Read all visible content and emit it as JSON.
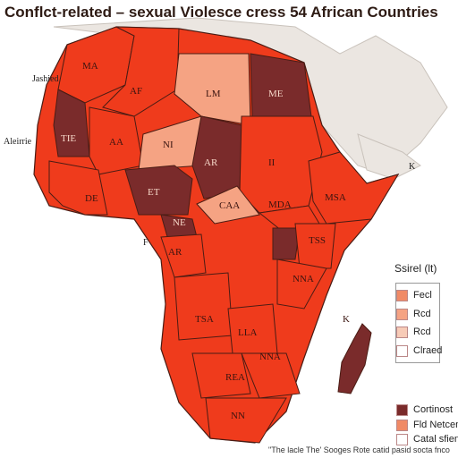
{
  "title": "Conflct-related – sexual Violesce cress 54 African Countries",
  "colors": {
    "land_light": "#ebe6e1",
    "ocean": "#ffffff",
    "dark": "#7a2b2b",
    "red": "#ef3b1c",
    "salmon": "#f08a66",
    "pale": "#f5b79c",
    "border": "#4a1c14"
  },
  "side_labels": {
    "top_left": "Jashied",
    "left": "Aleirrie",
    "right_k": "K",
    "right_k2": "K",
    "west_f": "F"
  },
  "countries": [
    {
      "label": "MA",
      "shade": "red"
    },
    {
      "label": "AF",
      "shade": "red"
    },
    {
      "label": "LM",
      "shade": "salmon"
    },
    {
      "label": "ME",
      "shade": "dark"
    },
    {
      "label": "TIE",
      "shade": "dark"
    },
    {
      "label": "AA",
      "shade": "red"
    },
    {
      "label": "NI",
      "shade": "salmon"
    },
    {
      "label": "AR",
      "shade": "dark"
    },
    {
      "label": "II",
      "shade": "red"
    },
    {
      "label": "DE",
      "shade": "red"
    },
    {
      "label": "ET",
      "shade": "dark"
    },
    {
      "label": "CAA",
      "shade": "salmon"
    },
    {
      "label": "MDA",
      "shade": "red"
    },
    {
      "label": "MSA",
      "shade": "red"
    },
    {
      "label": "NE",
      "shade": "dark"
    },
    {
      "label": "AR",
      "shade": "red"
    },
    {
      "label": "TSS",
      "shade": "red"
    },
    {
      "label": "NNA",
      "shade": "red"
    },
    {
      "label": "TSA",
      "shade": "red"
    },
    {
      "label": "LLA",
      "shade": "red"
    },
    {
      "label": "NNA",
      "shade": "red"
    },
    {
      "label": "REA",
      "shade": "red"
    },
    {
      "label": "NN",
      "shade": "red"
    },
    {
      "label": "K",
      "shade": "dark"
    }
  ],
  "legend": {
    "title": "Ssirel (lt)",
    "items": [
      {
        "label": "Fecl",
        "color": "#f08a66"
      },
      {
        "label": "Rcd",
        "color": "#f5a383"
      },
      {
        "label": "Rcd",
        "color": "#f7cbb7"
      },
      {
        "label": "Clraed",
        "color": "#ffffff"
      }
    ],
    "lower_items": [
      {
        "label": "Cortinost",
        "color": "#7a2b2b"
      },
      {
        "label": "Fld Netcent",
        "color": "#f08a66"
      },
      {
        "label": "Catal sfiend",
        "color": "#ffffff"
      }
    ]
  },
  "footnote": "\"The lacle The' Sooges Rote catid pasid socta fnco"
}
